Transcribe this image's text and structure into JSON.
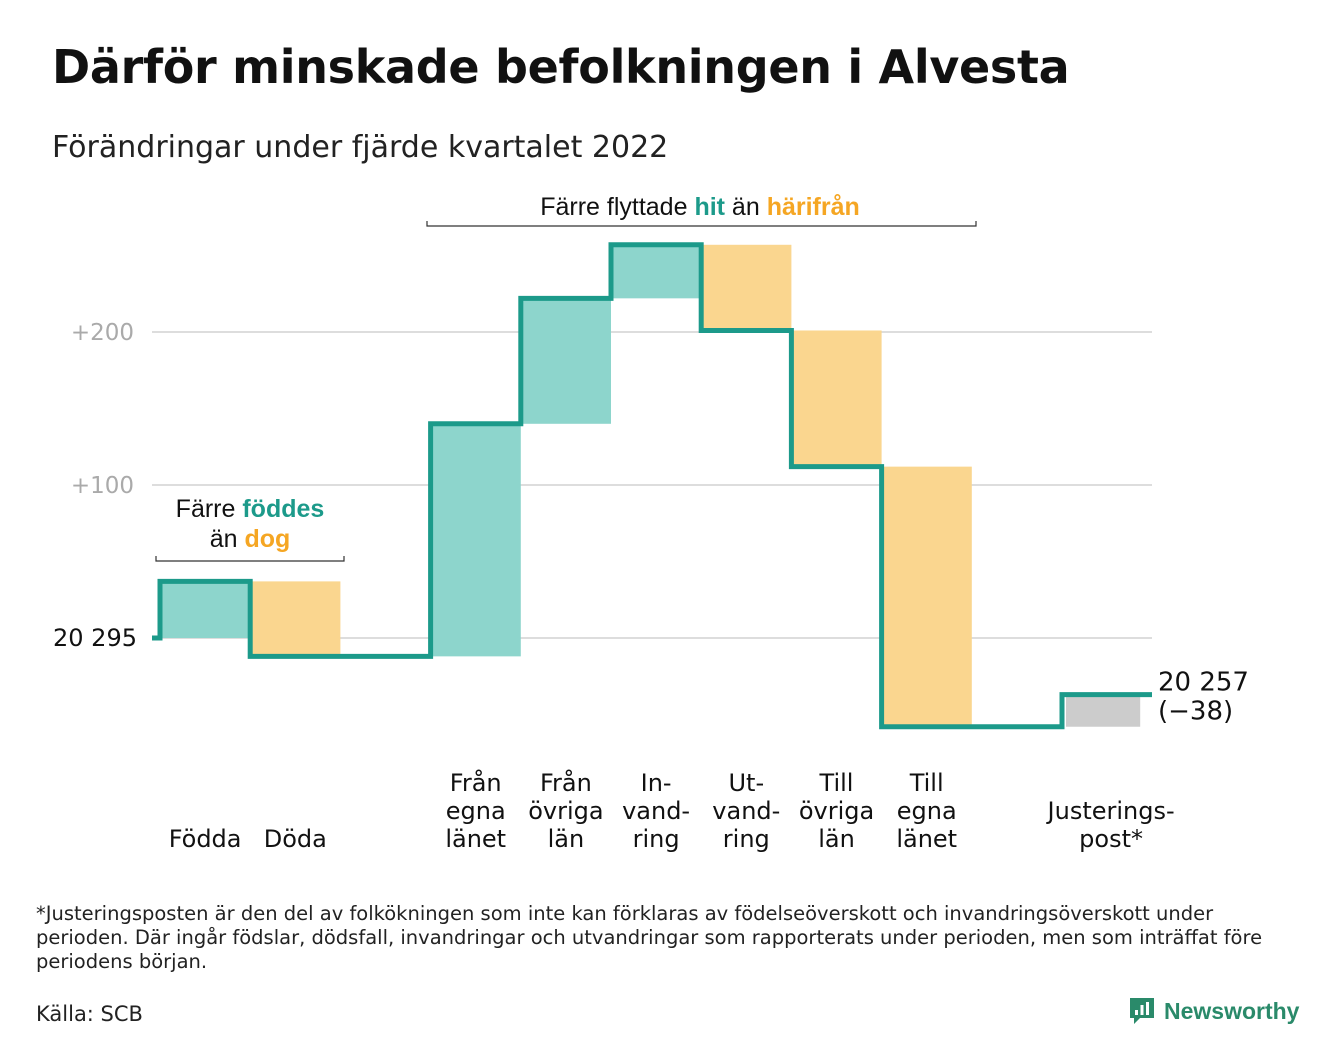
{
  "title": "Därför minskade befolkningen i Alvesta",
  "subtitle": "Förändringar under fjärde kvartalet 2022",
  "footnote": "*Justeringsposten är den del av folkökningen som inte kan förklaras av födelseöverskott och invandringsöverskott under perioden. Där ingår födslar, dödsfall, invandringar och utvandringar som rapporterats under perioden, men som inträffat före periodens början.",
  "source": "Källa: SCB",
  "brand": {
    "name": "Newsworthy"
  },
  "colors": {
    "increase": "#8dd5cc",
    "decrease": "#fad68f",
    "adjustment": "#cccccc",
    "line": "#1c9a8a",
    "teal_text": "#1c9a8a",
    "orange_text": "#f5a623",
    "grid": "#dddddd",
    "tick_text": "#aaaaaa"
  },
  "chart_data": {
    "type": "waterfall",
    "start_value": 20295,
    "start_label": "20 295",
    "end_label_value": "20 257",
    "end_label_change": "(−38)",
    "y_ticks": [
      {
        "value": 200,
        "label": "+200"
      },
      {
        "value": 100,
        "label": "+100"
      }
    ],
    "steps": [
      {
        "label": [
          "Födda"
        ],
        "value": 37,
        "kind": "increase"
      },
      {
        "label": [
          "Döda"
        ],
        "value": -49,
        "kind": "decrease"
      },
      {
        "label": [],
        "value": 0,
        "kind": "none"
      },
      {
        "label": [
          "Från",
          "egna",
          "länet"
        ],
        "value": 152,
        "kind": "increase"
      },
      {
        "label": [
          "Från",
          "övriga",
          "län"
        ],
        "value": 82,
        "kind": "increase"
      },
      {
        "label": [
          "In-",
          "vand-",
          "ring"
        ],
        "value": 35,
        "kind": "increase"
      },
      {
        "label": [
          "Ut-",
          "vand-",
          "ring"
        ],
        "value": -56,
        "kind": "decrease"
      },
      {
        "label": [
          "Till",
          "övriga",
          "län"
        ],
        "value": -89,
        "kind": "decrease"
      },
      {
        "label": [
          "Till",
          "egna",
          "länet"
        ],
        "value": -170,
        "kind": "decrease"
      },
      {
        "label": [],
        "value": 0,
        "kind": "none"
      },
      {
        "label": [
          "Justerings-",
          "post*"
        ],
        "value": 21,
        "kind": "adjustment"
      }
    ],
    "annotations": [
      {
        "id": "births",
        "parts": [
          [
            "Färre ",
            "plain"
          ],
          [
            "föddes",
            "teal"
          ],
          [
            "\n",
            "plain"
          ],
          [
            "än ",
            "plain"
          ],
          [
            "dog",
            "orange"
          ]
        ]
      },
      {
        "id": "moves",
        "parts": [
          [
            "Färre flyttade ",
            "plain"
          ],
          [
            "hit",
            "teal"
          ],
          [
            " än ",
            "plain"
          ],
          [
            "härifrån",
            "orange"
          ]
        ]
      }
    ]
  }
}
